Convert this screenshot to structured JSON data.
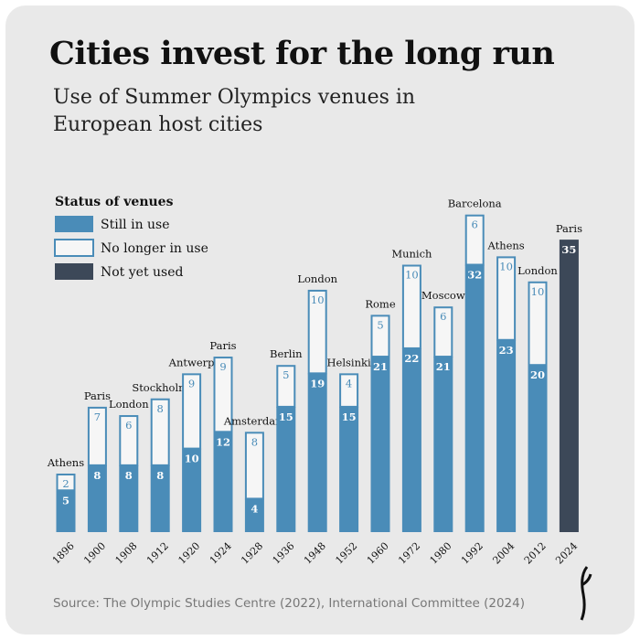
{
  "chart_data": {
    "type": "stacked-bar",
    "title": "Cities invest for the long run",
    "subtitle": "Use of Summer Olympics venues in European host cities",
    "legend_title": "Status of venues",
    "source": "Source: The Olympic Studies Centre (2022), International Committee (2024)",
    "categories": [
      "1896",
      "1900",
      "1908",
      "1912",
      "1920",
      "1924",
      "1928",
      "1936",
      "1948",
      "1952",
      "1960",
      "1972",
      "1980",
      "1992",
      "2004",
      "2012",
      "2024"
    ],
    "cities": [
      "Athens",
      "Paris",
      "London",
      "Stockholm",
      "Antwerp",
      "Paris",
      "Amsterdam",
      "Berlin",
      "London",
      "Helsinki",
      "Rome",
      "Munich",
      "Moscow",
      "Barcelona",
      "Athens",
      "London",
      "Paris"
    ],
    "series": [
      {
        "name": "Still in use",
        "color": "#4a8cb8",
        "outline": false,
        "values": [
          5,
          8,
          8,
          8,
          10,
          12,
          4,
          15,
          19,
          15,
          21,
          22,
          21,
          32,
          23,
          20,
          null
        ]
      },
      {
        "name": "No longer in use",
        "color": "#4a8cb8",
        "outline": true,
        "values": [
          2,
          7,
          6,
          8,
          9,
          9,
          8,
          5,
          10,
          4,
          5,
          10,
          6,
          6,
          10,
          10,
          null
        ]
      },
      {
        "name": "Not yet used",
        "color": "#3c4858",
        "outline": false,
        "values": [
          null,
          null,
          null,
          null,
          null,
          null,
          null,
          null,
          null,
          null,
          null,
          null,
          null,
          null,
          null,
          null,
          35
        ]
      }
    ]
  }
}
